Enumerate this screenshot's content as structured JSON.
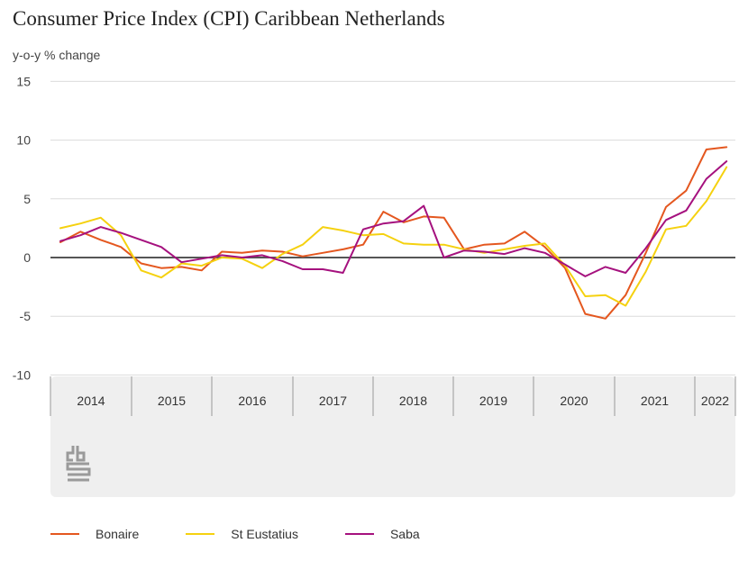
{
  "chart_data": {
    "type": "line",
    "title": "Consumer Price Index (CPI) Caribbean Netherlands",
    "ylabel": "y-o-y % change",
    "ylim": [
      -10,
      15
    ],
    "yticks": [
      -10,
      -5,
      0,
      5,
      10,
      15
    ],
    "grid": true,
    "legend_position": "bottom",
    "year_labels": [
      "2014",
      "2015",
      "2016",
      "2017",
      "2018",
      "2019",
      "2020",
      "2021",
      "2022"
    ],
    "x_quarters": [
      "2014Q1",
      "2014Q2",
      "2014Q3",
      "2014Q4",
      "2015Q1",
      "2015Q2",
      "2015Q3",
      "2015Q4",
      "2016Q1",
      "2016Q2",
      "2016Q3",
      "2016Q4",
      "2017Q1",
      "2017Q2",
      "2017Q3",
      "2017Q4",
      "2018Q1",
      "2018Q2",
      "2018Q3",
      "2018Q4",
      "2019Q1",
      "2019Q2",
      "2019Q3",
      "2019Q4",
      "2020Q1",
      "2020Q2",
      "2020Q3",
      "2020Q4",
      "2021Q1",
      "2021Q2",
      "2021Q3",
      "2021Q4",
      "2022Q1",
      "2022Q2",
      "2022Q3"
    ],
    "series": [
      {
        "name": "Bonaire",
        "color": "#e4571f",
        "values": [
          1.3,
          2.2,
          1.5,
          0.9,
          -0.5,
          -0.9,
          -0.8,
          -1.1,
          0.5,
          0.4,
          0.6,
          0.5,
          0.1,
          0.4,
          0.7,
          1.1,
          3.9,
          3.0,
          3.5,
          3.4,
          0.7,
          1.1,
          1.2,
          2.2,
          0.9,
          -0.9,
          -4.8,
          -5.2,
          -3.2,
          0.4,
          4.3,
          5.7,
          9.2,
          9.4,
          null
        ]
      },
      {
        "name": "St Eustatius",
        "color": "#f5d10f",
        "values": [
          2.5,
          2.9,
          3.4,
          1.9,
          -1.1,
          -1.7,
          -0.5,
          -0.7,
          0.0,
          -0.1,
          -0.9,
          0.3,
          1.1,
          2.6,
          2.3,
          1.9,
          2.0,
          1.2,
          1.1,
          1.1,
          0.7,
          0.4,
          0.7,
          1.0,
          1.2,
          -0.7,
          -3.3,
          -3.2,
          -4.1,
          -1.2,
          2.4,
          2.7,
          4.8,
          7.7,
          null
        ]
      },
      {
        "name": "Saba",
        "color": "#a5117e",
        "values": [
          1.4,
          1.9,
          2.6,
          2.1,
          1.5,
          0.9,
          -0.4,
          -0.1,
          0.2,
          0.0,
          0.2,
          -0.3,
          -1.0,
          -1.0,
          -1.3,
          2.4,
          2.9,
          3.1,
          4.4,
          0.0,
          0.6,
          0.5,
          0.3,
          0.8,
          0.4,
          -0.6,
          -1.6,
          -0.8,
          -1.3,
          0.8,
          3.2,
          4.0,
          6.7,
          8.2,
          null
        ]
      }
    ]
  },
  "logo": {
    "name": "cbs"
  }
}
